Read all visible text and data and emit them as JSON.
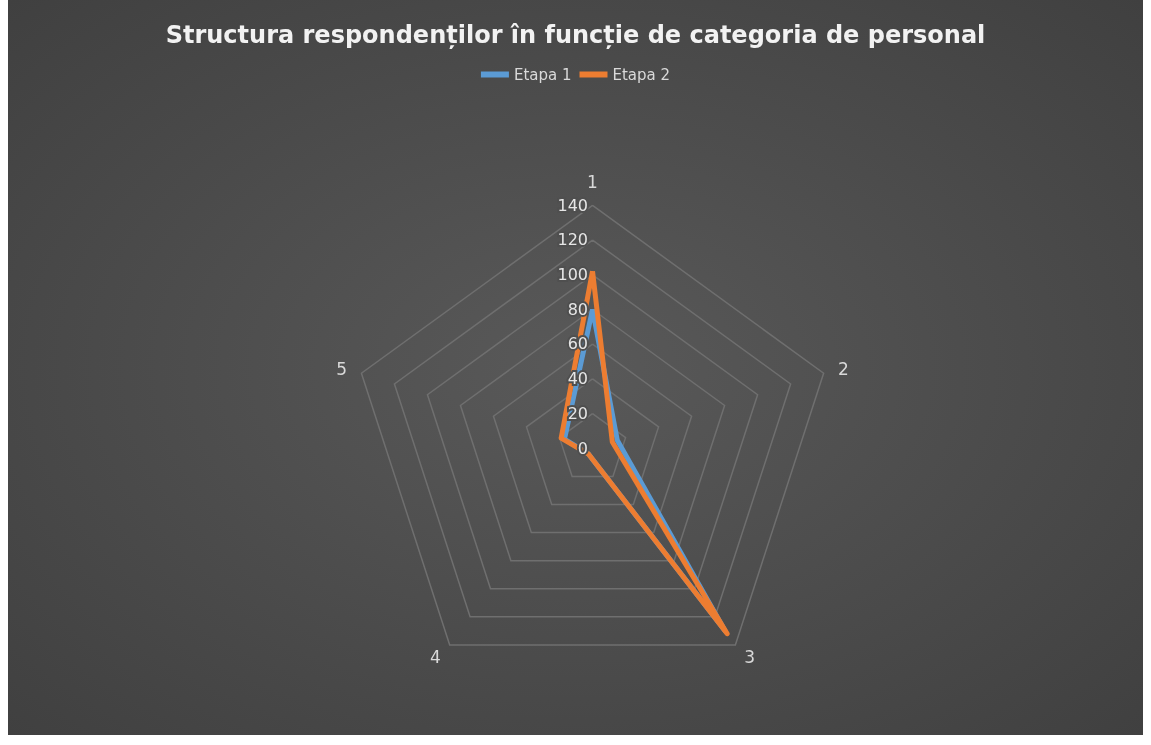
{
  "chart_data": {
    "type": "radar",
    "title": "Structura respondenților în funcție de categoria de personal",
    "categories": [
      "1",
      "2",
      "3",
      "4",
      "5"
    ],
    "series": [
      {
        "name": "Etapa 1",
        "color": "#5b9bd5",
        "values": [
          80,
          15,
          130,
          4,
          17
        ]
      },
      {
        "name": "Etapa 2",
        "color": "#ed7d31",
        "values": [
          102,
          12,
          132,
          4,
          19
        ]
      }
    ],
    "ylim": [
      0,
      140
    ],
    "yticks": [
      0,
      20,
      40,
      60,
      80,
      100,
      120,
      140
    ],
    "legend": "top",
    "marker": "none"
  }
}
